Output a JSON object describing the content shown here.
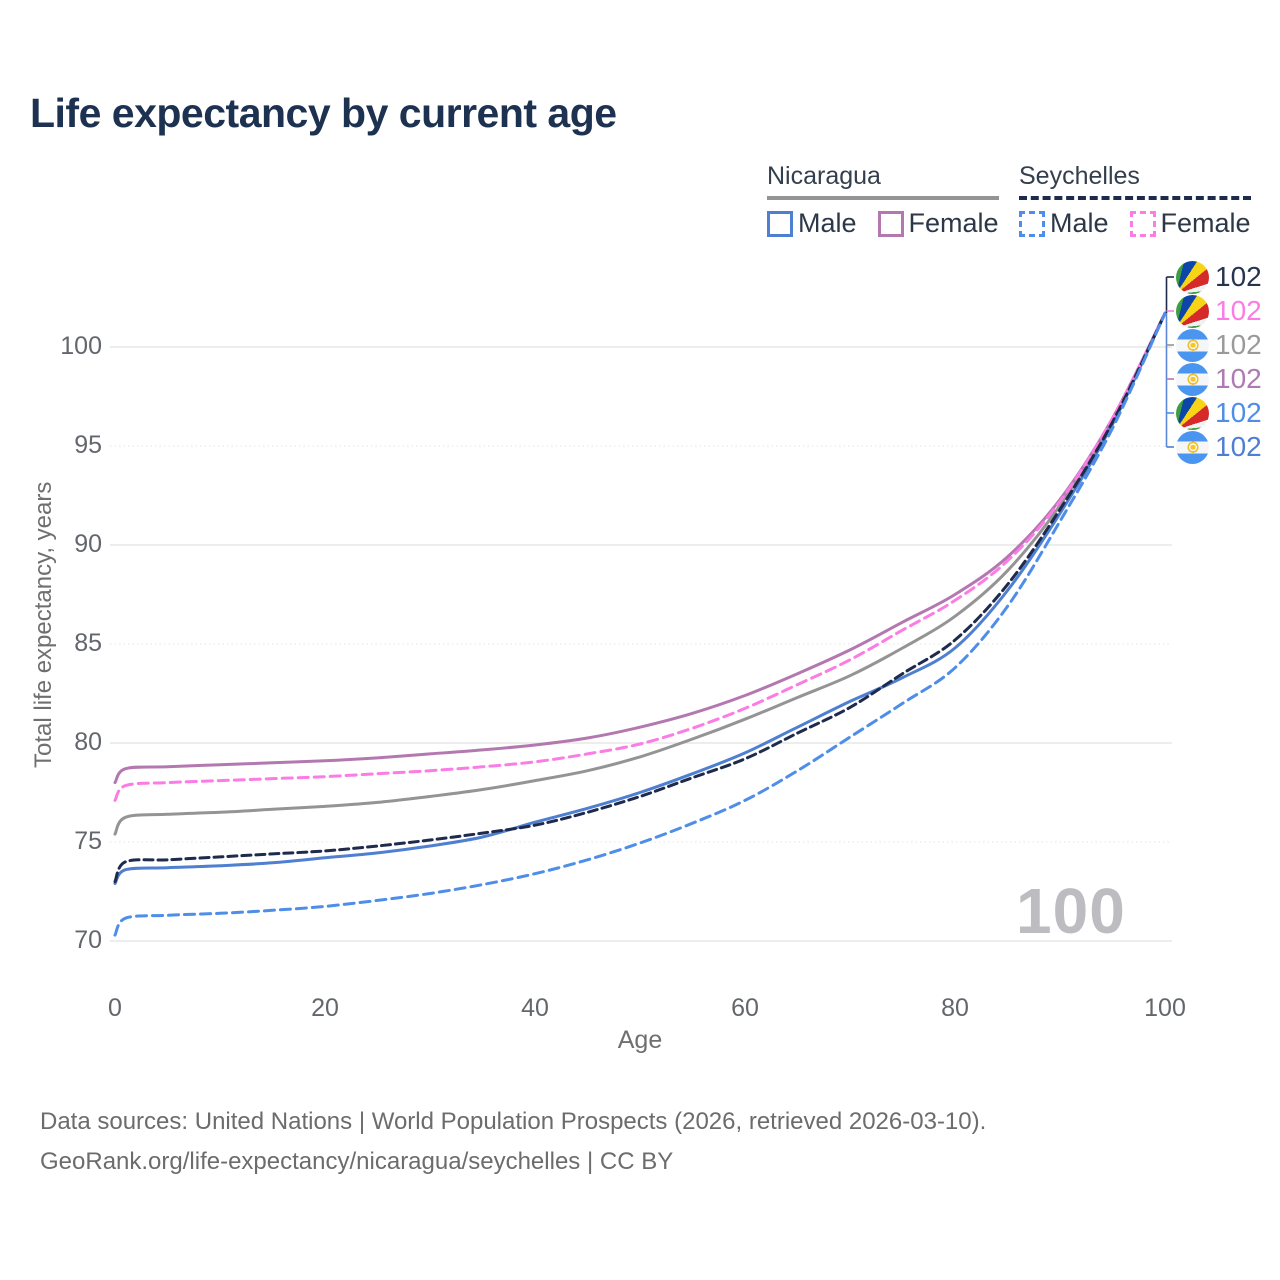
{
  "title": "Life expectancy by current age",
  "legend": {
    "groups": [
      {
        "name": "Nicaragua",
        "underline_series": "nic-total",
        "items": [
          {
            "label": "Male",
            "series": "nic-male"
          },
          {
            "label": "Female",
            "series": "nic-female"
          }
        ]
      },
      {
        "name": "Seychelles",
        "underline_series": "sey-total",
        "items": [
          {
            "label": "Male",
            "series": "sey-male"
          },
          {
            "label": "Female",
            "series": "sey-female"
          }
        ]
      }
    ]
  },
  "watermark": "100",
  "footer": {
    "line1": "Data sources: United Nations | World Population Prospects (2026, retrieved 2026-03-10).",
    "line2": "GeoRank.org/life-expectancy/nicaragua/seychelles | CC BY"
  },
  "chart_data": {
    "type": "line",
    "title": "Life expectancy by current age",
    "xlabel": "Age",
    "ylabel": "Total life expectancy, years",
    "xlim": [
      0,
      100
    ],
    "ylim": [
      69.5,
      103
    ],
    "x_ticks": [
      0,
      20,
      40,
      60,
      80,
      100
    ],
    "y_ticks": [
      70,
      75,
      80,
      85,
      90,
      95,
      100
    ],
    "grid": true,
    "legend_position": "top-right",
    "x": [
      0,
      1,
      5,
      10,
      15,
      20,
      25,
      30,
      35,
      40,
      45,
      50,
      55,
      60,
      65,
      70,
      75,
      80,
      85,
      90,
      95,
      100
    ],
    "series": [
      {
        "id": "sey-total",
        "name": "Seychelles Total",
        "country": "Seychelles",
        "flag": "seychelles",
        "dash": "dashed",
        "color": "#1e2b4d",
        "label_color": "#263450",
        "end_label": "102",
        "values": [
          73.0,
          74.0,
          74.1,
          74.25,
          74.4,
          74.55,
          74.8,
          75.1,
          75.45,
          75.85,
          76.5,
          77.3,
          78.25,
          79.2,
          80.5,
          81.8,
          83.5,
          85.2,
          88.0,
          91.8,
          96.2,
          101.7
        ]
      },
      {
        "id": "sey-female",
        "name": "Seychelles Female",
        "country": "Seychelles",
        "flag": "seychelles",
        "dash": "dashed",
        "color": "#fb7ce4",
        "label_color": "#fb7ce4",
        "end_label": "102",
        "values": [
          77.1,
          77.85,
          78.0,
          78.1,
          78.2,
          78.3,
          78.45,
          78.6,
          78.8,
          79.05,
          79.45,
          79.95,
          80.75,
          81.75,
          82.95,
          84.2,
          85.7,
          87.2,
          89.2,
          92.2,
          96.4,
          101.7
        ]
      },
      {
        "id": "nic-total",
        "name": "Nicaragua Total",
        "country": "Nicaragua",
        "flag": "nicaragua",
        "dash": "solid",
        "color": "#949494",
        "label_color": "#9a9a9a",
        "end_label": "102",
        "values": [
          75.4,
          76.25,
          76.4,
          76.5,
          76.65,
          76.8,
          77.0,
          77.3,
          77.65,
          78.1,
          78.6,
          79.3,
          80.2,
          81.2,
          82.3,
          83.4,
          84.8,
          86.4,
          88.7,
          92.0,
          96.3,
          101.7
        ]
      },
      {
        "id": "nic-female",
        "name": "Nicaragua Female",
        "country": "Nicaragua",
        "flag": "nicaragua",
        "dash": "solid",
        "color": "#b478b0",
        "label_color": "#ad7ab2",
        "end_label": "102",
        "values": [
          78.0,
          78.7,
          78.8,
          78.9,
          79.0,
          79.1,
          79.25,
          79.45,
          79.65,
          79.9,
          80.25,
          80.8,
          81.5,
          82.4,
          83.5,
          84.7,
          86.1,
          87.5,
          89.4,
          92.3,
          96.4,
          101.7
        ]
      },
      {
        "id": "sey-male",
        "name": "Seychelles Male",
        "country": "Seychelles",
        "flag": "seychelles",
        "dash": "dashed",
        "color": "#4e8ee8",
        "label_color": "#4e8ee8",
        "end_label": "102",
        "values": [
          70.3,
          71.15,
          71.3,
          71.4,
          71.55,
          71.75,
          72.05,
          72.4,
          72.85,
          73.4,
          74.1,
          74.95,
          75.95,
          77.1,
          78.6,
          80.3,
          82.0,
          83.8,
          86.9,
          91.2,
          95.9,
          101.7
        ]
      },
      {
        "id": "nic-male",
        "name": "Nicaragua Male",
        "country": "Nicaragua",
        "flag": "nicaragua",
        "dash": "solid",
        "color": "#4f7fd0",
        "label_color": "#4f7fd0",
        "end_label": "102",
        "values": [
          72.9,
          73.6,
          73.7,
          73.8,
          73.95,
          74.2,
          74.45,
          74.8,
          75.25,
          76.0,
          76.7,
          77.5,
          78.45,
          79.5,
          80.8,
          82.1,
          83.3,
          84.8,
          87.7,
          91.6,
          96.1,
          101.7
        ]
      }
    ]
  }
}
